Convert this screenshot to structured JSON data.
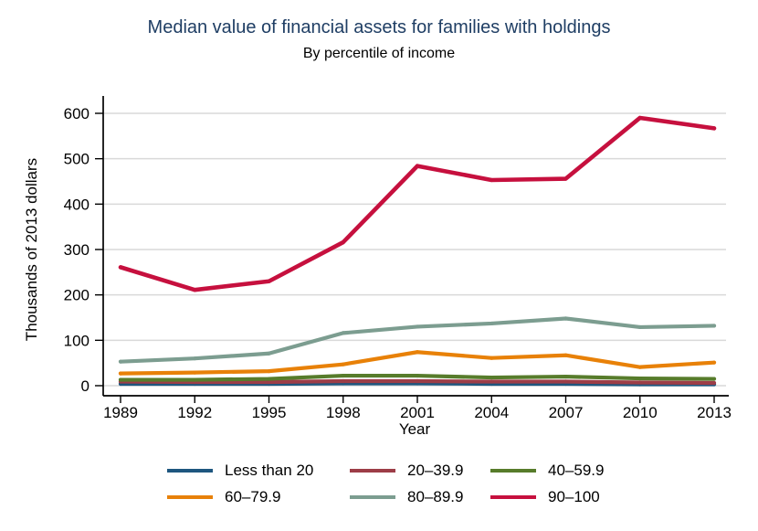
{
  "chart_data": {
    "type": "line",
    "title": "Median value of financial assets for families with holdings",
    "subtitle": "By percentile of income",
    "xlabel": "Year",
    "ylabel": "Thousands of 2013 dollars",
    "x": [
      1989,
      1992,
      1995,
      1998,
      2001,
      2004,
      2007,
      2010,
      2013
    ],
    "ylim": [
      0,
      600
    ],
    "yticks": [
      0,
      100,
      200,
      300,
      400,
      500,
      600
    ],
    "grid": true,
    "legend_position": "bottom",
    "title_color": "#1f3e64",
    "grid_color": "#d9d9d9",
    "axis_color": "#000000",
    "series": [
      {
        "name": "Less than 20",
        "color": "#1e567f",
        "values": [
          4,
          4,
          4,
          5,
          5,
          4,
          4,
          3,
          3
        ]
      },
      {
        "name": "20–39.9",
        "color": "#9d3d47",
        "values": [
          9,
          8,
          8,
          10,
          10,
          9,
          9,
          7,
          6
        ]
      },
      {
        "name": "40–59.9",
        "color": "#577c2b",
        "values": [
          13,
          13,
          15,
          22,
          22,
          18,
          20,
          16,
          15
        ]
      },
      {
        "name": "60–79.9",
        "color": "#e88108",
        "values": [
          27,
          29,
          32,
          47,
          74,
          61,
          67,
          41,
          51
        ]
      },
      {
        "name": "80–89.9",
        "color": "#7c9d90",
        "values": [
          53,
          60,
          71,
          116,
          130,
          137,
          148,
          129,
          132
        ]
      },
      {
        "name": "90–100",
        "color": "#c6103e",
        "values": [
          261,
          211,
          230,
          316,
          484,
          453,
          456,
          590,
          567
        ]
      }
    ]
  }
}
